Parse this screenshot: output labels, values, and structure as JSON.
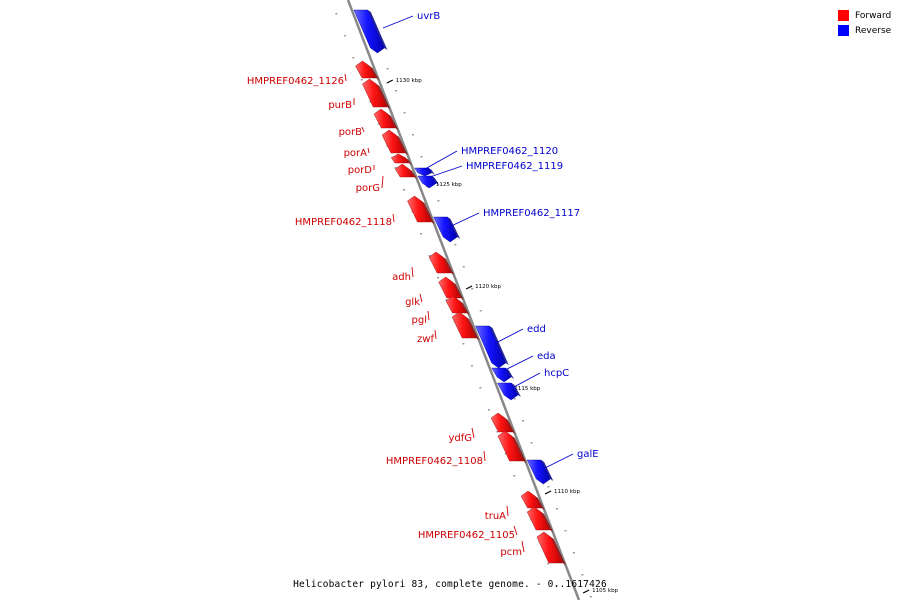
{
  "colors": {
    "forward": "#ff0000",
    "reverse": "#0000ff",
    "forward_label": "#cc0000",
    "reverse_label": "#0000cc",
    "backbone": "#888888"
  },
  "legend": {
    "forward": "Forward",
    "reverse": "Reverse"
  },
  "caption": "Helicobacter pylori 83, complete genome. - 0..1617426",
  "scale_ticks": [
    "1130 kbp",
    "1125 kbp",
    "1120 kbp",
    "1115 kbp",
    "1110 kbp",
    "1105 kbp"
  ],
  "genes": [
    {
      "name": "uvrB",
      "strand": "reverse"
    },
    {
      "name": "HMPREF0462_1126",
      "strand": "forward"
    },
    {
      "name": "purB",
      "strand": "forward"
    },
    {
      "name": "porB",
      "strand": "forward"
    },
    {
      "name": "porA",
      "strand": "forward"
    },
    {
      "name": "porD",
      "strand": "forward"
    },
    {
      "name": "porG",
      "strand": "forward"
    },
    {
      "name": "HMPREF0462_1120",
      "strand": "reverse"
    },
    {
      "name": "HMPREF0462_1119",
      "strand": "reverse"
    },
    {
      "name": "HMPREF0462_1118",
      "strand": "forward"
    },
    {
      "name": "HMPREF0462_1117",
      "strand": "reverse"
    },
    {
      "name": "adh",
      "strand": "forward"
    },
    {
      "name": "glk",
      "strand": "forward"
    },
    {
      "name": "pgl",
      "strand": "forward"
    },
    {
      "name": "zwf",
      "strand": "forward"
    },
    {
      "name": "edd",
      "strand": "reverse"
    },
    {
      "name": "eda",
      "strand": "reverse"
    },
    {
      "name": "hcpC",
      "strand": "reverse"
    },
    {
      "name": "ydfG",
      "strand": "forward"
    },
    {
      "name": "HMPREF0462_1108",
      "strand": "forward"
    },
    {
      "name": "galE",
      "strand": "reverse"
    },
    {
      "name": "truA",
      "strand": "forward"
    },
    {
      "name": "HMPREF0462_1105",
      "strand": "forward"
    },
    {
      "name": "pcm",
      "strand": "forward"
    }
  ]
}
